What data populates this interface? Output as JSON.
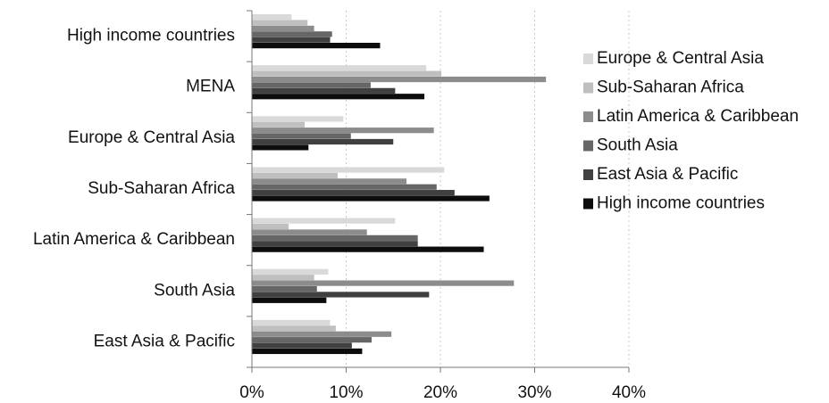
{
  "chart_data": {
    "type": "bar",
    "orientation": "horizontal",
    "title": "",
    "xlabel": "",
    "ylabel": "",
    "xlim": [
      0,
      40
    ],
    "x_tick_labels": [
      "0%",
      "10%",
      "20%",
      "30%",
      "40%"
    ],
    "x_ticks": [
      0,
      10,
      20,
      30,
      40
    ],
    "grid": "vertical dotted",
    "legend_position": "right",
    "categories": [
      "High income countries",
      "MENA",
      "Europe & Central Asia",
      "Sub-Saharan Africa",
      "Latin America & Caribbean",
      "South Asia",
      "East Asia & Pacific"
    ],
    "series": [
      {
        "name": "Europe & Central Asia",
        "color": "#d9d9d9",
        "values": [
          4.2,
          18.5,
          9.7,
          20.4,
          15.2,
          8.1,
          8.3
        ]
      },
      {
        "name": "Sub-Saharan Africa",
        "color": "#bfbfbf",
        "values": [
          5.9,
          20.1,
          5.6,
          9.1,
          3.9,
          6.6,
          8.9
        ]
      },
      {
        "name": "Latin America & Caribbean",
        "color": "#8c8c8c",
        "values": [
          6.6,
          31.2,
          19.3,
          16.4,
          12.2,
          27.8,
          14.8
        ]
      },
      {
        "name": "South Asia",
        "color": "#666666",
        "values": [
          8.5,
          12.6,
          10.5,
          19.6,
          17.6,
          6.9,
          12.7
        ]
      },
      {
        "name": "East Asia & Pacific",
        "color": "#404040",
        "values": [
          8.3,
          15.2,
          15.0,
          21.5,
          17.6,
          18.8,
          10.6
        ]
      },
      {
        "name": "High income countries",
        "color": "#0d0d0d",
        "values": [
          13.6,
          18.3,
          6.0,
          25.2,
          24.6,
          7.9,
          11.7
        ]
      }
    ]
  }
}
